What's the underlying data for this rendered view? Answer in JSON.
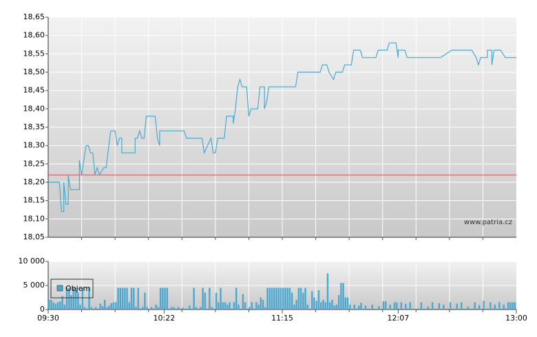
{
  "chart_data": [
    {
      "type": "line",
      "color": "#4aa8d0",
      "annotation": "www.patria.cz",
      "reference_line": {
        "value": 18.22,
        "color": "#e05050"
      },
      "xlim": [
        "09:30",
        "13:00"
      ],
      "ylim": [
        18.05,
        18.65
      ],
      "yticks": [
        {
          "value": 18.05,
          "label": "18,05"
        },
        {
          "value": 18.1,
          "label": "18,10"
        },
        {
          "value": 18.15,
          "label": "18,15"
        },
        {
          "value": 18.2,
          "label": "18,20"
        },
        {
          "value": 18.25,
          "label": "18,25"
        },
        {
          "value": 18.3,
          "label": "18,30"
        },
        {
          "value": 18.35,
          "label": "18,35"
        },
        {
          "value": 18.4,
          "label": "18,40"
        },
        {
          "value": 18.45,
          "label": "18,45"
        },
        {
          "value": 18.5,
          "label": "18,50"
        },
        {
          "value": 18.55,
          "label": "18,55"
        },
        {
          "value": 18.6,
          "label": "18,60"
        },
        {
          "value": 18.65,
          "label": "18,65"
        }
      ],
      "grid": true,
      "x": [
        "09:30",
        "09:35",
        "09:36",
        "09:37",
        "09:37",
        "09:38",
        "09:39",
        "09:39",
        "09:40",
        "09:44",
        "09:44",
        "09:45",
        "09:47",
        "09:48",
        "09:49",
        "09:50",
        "09:51",
        "09:52",
        "09:53",
        "09:55",
        "09:56",
        "09:58",
        "10:00",
        "10:01",
        "10:02",
        "10:03",
        "10:03",
        "10:09",
        "10:09",
        "10:10",
        "10:11",
        "10:12",
        "10:13",
        "10:14",
        "10:18",
        "10:19",
        "10:20",
        "10:20",
        "10:31",
        "10:32",
        "10:39",
        "10:40",
        "10:43",
        "10:44",
        "10:45",
        "10:46",
        "10:49",
        "10:50",
        "10:53",
        "10:53",
        "10:54",
        "10:55",
        "10:56",
        "10:57",
        "10:59",
        "11:00",
        "11:01",
        "11:04",
        "11:05",
        "11:07",
        "11:07",
        "11:08",
        "11:09",
        "11:21",
        "11:22",
        "11:32",
        "11:33",
        "11:35",
        "11:36",
        "11:38",
        "11:39",
        "11:42",
        "11:43",
        "11:46",
        "11:47",
        "11:50",
        "11:51",
        "11:57",
        "11:58",
        "12:02",
        "12:03",
        "12:06",
        "12:07",
        "12:07",
        "12:10",
        "12:11",
        "12:26",
        "12:31",
        "12:40",
        "12:42",
        "12:43",
        "12:44",
        "12:47",
        "12:47",
        "12:49",
        "12:49",
        "12:50",
        "12:53",
        "12:55",
        "13:00"
      ],
      "values": [
        18.2,
        18.2,
        18.12,
        18.12,
        18.2,
        18.14,
        18.14,
        18.22,
        18.18,
        18.18,
        18.26,
        18.22,
        18.3,
        18.3,
        18.28,
        18.28,
        18.22,
        18.24,
        18.22,
        18.24,
        18.24,
        18.34,
        18.34,
        18.3,
        18.32,
        18.32,
        18.28,
        18.28,
        18.32,
        18.32,
        18.34,
        18.32,
        18.32,
        18.38,
        18.38,
        18.32,
        18.3,
        18.34,
        18.34,
        18.32,
        18.32,
        18.28,
        18.32,
        18.28,
        18.28,
        18.32,
        18.32,
        18.38,
        18.38,
        18.36,
        18.4,
        18.46,
        18.48,
        18.46,
        18.46,
        18.38,
        18.4,
        18.4,
        18.46,
        18.46,
        18.4,
        18.42,
        18.46,
        18.46,
        18.5,
        18.5,
        18.52,
        18.52,
        18.5,
        18.48,
        18.5,
        18.5,
        18.52,
        18.52,
        18.56,
        18.56,
        18.54,
        18.54,
        18.56,
        18.56,
        18.58,
        18.58,
        18.54,
        18.56,
        18.56,
        18.54,
        18.54,
        18.56,
        18.56,
        18.54,
        18.52,
        18.54,
        18.54,
        18.56,
        18.56,
        18.52,
        18.56,
        18.56,
        18.54,
        18.54
      ]
    },
    {
      "type": "bar",
      "xlim": [
        "09:30",
        "13:00"
      ],
      "xticks": [
        "09:30",
        "10:22",
        "11:15",
        "12:07",
        "13:00"
      ],
      "ylim": [
        0,
        10000
      ],
      "yticks": [
        0,
        {
          "value": 5000,
          "label": "5 000"
        },
        {
          "value": 10000,
          "label": "10 000"
        }
      ],
      "grid": true,
      "x": [
        "09:30",
        "09:31",
        "09:32",
        "09:33",
        "09:34",
        "09:35",
        "09:36",
        "09:37",
        "09:38",
        "09:39",
        "09:40",
        "09:41",
        "09:42",
        "09:43",
        "09:44",
        "09:45",
        "09:46",
        "09:48",
        "09:49",
        "09:51",
        "09:53",
        "09:54",
        "09:55",
        "09:56",
        "09:57",
        "09:58",
        "09:59",
        "10:00",
        "10:01",
        "10:02",
        "10:03",
        "10:04",
        "10:05",
        "10:06",
        "10:07",
        "10:08",
        "10:09",
        "10:10",
        "10:12",
        "10:13",
        "10:14",
        "10:16",
        "10:18",
        "10:19",
        "10:20",
        "10:21",
        "10:22",
        "10:23",
        "10:25",
        "10:26",
        "10:28",
        "10:30",
        "10:33",
        "10:35",
        "10:36",
        "10:38",
        "10:39",
        "10:40",
        "10:42",
        "10:43",
        "10:45",
        "10:46",
        "10:47",
        "10:48",
        "10:49",
        "10:50",
        "10:51",
        "10:53",
        "10:54",
        "10:55",
        "10:57",
        "10:58",
        "11:00",
        "11:01",
        "11:03",
        "11:04",
        "11:05",
        "11:06",
        "11:07",
        "11:08",
        "11:09",
        "11:10",
        "11:11",
        "11:12",
        "11:13",
        "11:14",
        "11:15",
        "11:16",
        "11:17",
        "11:18",
        "11:19",
        "11:20",
        "11:21",
        "11:22",
        "11:23",
        "11:24",
        "11:25",
        "11:26",
        "11:28",
        "11:29",
        "11:30",
        "11:31",
        "11:32",
        "11:33",
        "11:34",
        "11:35",
        "11:36",
        "11:37",
        "11:38",
        "11:39",
        "11:40",
        "11:41",
        "11:42",
        "11:43",
        "11:44",
        "11:45",
        "11:47",
        "11:49",
        "11:50",
        "11:52",
        "11:55",
        "11:58",
        "12:00",
        "12:01",
        "12:03",
        "12:05",
        "12:06",
        "12:08",
        "12:10",
        "12:12",
        "12:17",
        "12:20",
        "12:22",
        "12:25",
        "12:27",
        "12:30",
        "12:33",
        "12:35",
        "12:38",
        "12:41",
        "12:43",
        "12:45",
        "12:48",
        "12:50",
        "12:52",
        "12:54",
        "12:56",
        "12:57",
        "12:58",
        "12:59"
      ],
      "series": [
        {
          "name": "Objem",
          "color": "#4aa8d0",
          "values": [
            2000,
            2000,
            1500,
            1200,
            1500,
            1700,
            2800,
            1000,
            4500,
            4500,
            3000,
            4500,
            4500,
            3500,
            1000,
            4500,
            500,
            4500,
            500,
            500,
            1200,
            700,
            2000,
            500,
            800,
            1300,
            1500,
            1500,
            4500,
            4500,
            4500,
            4500,
            4500,
            1500,
            4500,
            4500,
            500,
            4500,
            500,
            3500,
            500,
            500,
            1000,
            500,
            4500,
            4500,
            4500,
            4500,
            500,
            500,
            500,
            400,
            800,
            4500,
            500,
            500,
            4500,
            3500,
            4500,
            500,
            3500,
            1500,
            4500,
            1500,
            1500,
            1000,
            1500,
            1500,
            4500,
            1000,
            3200,
            1500,
            500,
            1500,
            1500,
            1000,
            2500,
            2000,
            500,
            4500,
            4500,
            4500,
            4500,
            4500,
            4500,
            4500,
            4500,
            4500,
            4500,
            4500,
            3500,
            1000,
            2000,
            4500,
            4500,
            3500,
            4500,
            1000,
            3800,
            2500,
            1800,
            4000,
            1500,
            2000,
            1500,
            7500,
            1500,
            2000,
            800,
            1000,
            3000,
            5500,
            5500,
            2500,
            2500,
            1000,
            1000,
            800,
            1400,
            800,
            1000,
            700,
            1700,
            1700,
            1000,
            1500,
            1500,
            1500,
            1200,
            1500,
            1500,
            600,
            1500,
            1300,
            1000,
            1500,
            1200,
            1500,
            600,
            1500,
            900,
            1800,
            1500,
            1000,
            1500,
            1000,
            1500,
            1500,
            1500,
            1500
          ]
        }
      ]
    }
  ]
}
